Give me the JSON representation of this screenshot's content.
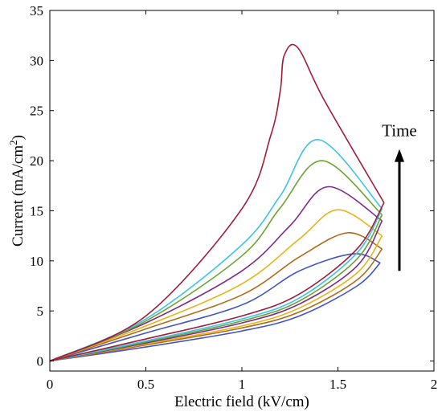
{
  "chart_data": {
    "type": "line",
    "xlabel": "Electric field (kV/cm)",
    "ylabel_main": "Current (mA/cm",
    "ylabel_sup": "2",
    "ylabel_close": ")",
    "xlim": [
      0,
      2
    ],
    "ylim": [
      -1,
      35
    ],
    "xticks": [
      0,
      0.5,
      1,
      1.5,
      2
    ],
    "xtick_labels": [
      "0",
      "0.5",
      "1",
      "1.5",
      "2"
    ],
    "yticks": [
      0,
      5,
      10,
      15,
      20,
      25,
      30,
      35
    ],
    "ytick_labels": [
      "0",
      "5",
      "10",
      "15",
      "20",
      "25",
      "30",
      "35"
    ],
    "grid": false,
    "annotation": {
      "text": "Time",
      "arrow_x": 1.82,
      "arrow_from": 9,
      "arrow_to": 21
    },
    "series": [
      {
        "color": "#4254c4",
        "upper": [
          [
            0,
            0
          ],
          [
            0.5,
            2.8
          ],
          [
            1,
            5.6
          ],
          [
            1.3,
            9.0
          ],
          [
            1.58,
            10.7
          ],
          [
            1.72,
            9.8
          ]
        ],
        "lower": [
          [
            1.72,
            9.8
          ],
          [
            1.6,
            7.5
          ],
          [
            1.3,
            4.5
          ],
          [
            1,
            3.0
          ],
          [
            0.5,
            1.4
          ],
          [
            0,
            0
          ]
        ]
      },
      {
        "color": "#b06a18",
        "upper": [
          [
            0,
            0
          ],
          [
            0.5,
            3.2
          ],
          [
            1,
            6.6
          ],
          [
            1.3,
            10.4
          ],
          [
            1.55,
            12.8
          ],
          [
            1.73,
            11.2
          ]
        ],
        "lower": [
          [
            1.73,
            11.2
          ],
          [
            1.6,
            8.1
          ],
          [
            1.3,
            4.9
          ],
          [
            1,
            3.3
          ],
          [
            0.5,
            1.6
          ],
          [
            0,
            0
          ]
        ]
      },
      {
        "color": "#e3b417",
        "upper": [
          [
            0,
            0
          ],
          [
            0.5,
            3.5
          ],
          [
            1,
            7.7
          ],
          [
            1.3,
            12.2
          ],
          [
            1.5,
            15.1
          ],
          [
            1.73,
            12.5
          ]
        ],
        "lower": [
          [
            1.73,
            12.5
          ],
          [
            1.6,
            8.8
          ],
          [
            1.3,
            5.3
          ],
          [
            1,
            3.5
          ],
          [
            0.5,
            1.7
          ],
          [
            0,
            0
          ]
        ]
      },
      {
        "color": "#7b2a8c",
        "upper": [
          [
            0,
            0
          ],
          [
            0.5,
            3.8
          ],
          [
            1,
            9.0
          ],
          [
            1.25,
            13.5
          ],
          [
            1.45,
            17.4
          ],
          [
            1.73,
            14.0
          ]
        ],
        "lower": [
          [
            1.73,
            14.0
          ],
          [
            1.6,
            9.5
          ],
          [
            1.3,
            5.7
          ],
          [
            1,
            3.8
          ],
          [
            0.5,
            1.8
          ],
          [
            0,
            0
          ]
        ]
      },
      {
        "color": "#6aa432",
        "upper": [
          [
            0,
            0
          ],
          [
            0.5,
            4.0
          ],
          [
            1,
            10.5
          ],
          [
            1.2,
            15.3
          ],
          [
            1.42,
            20.0
          ],
          [
            1.73,
            14.6
          ]
        ],
        "lower": [
          [
            1.73,
            14.6
          ],
          [
            1.6,
            10.2
          ],
          [
            1.3,
            6.0
          ],
          [
            1,
            4.0
          ],
          [
            0.5,
            1.9
          ],
          [
            0,
            0
          ]
        ]
      },
      {
        "color": "#3ec2e6",
        "upper": [
          [
            0,
            0
          ],
          [
            0.5,
            4.2
          ],
          [
            1,
            11.6
          ],
          [
            1.2,
            16.5
          ],
          [
            1.4,
            22.1
          ],
          [
            1.73,
            15.2
          ]
        ],
        "lower": [
          [
            1.73,
            15.2
          ],
          [
            1.6,
            10.8
          ],
          [
            1.3,
            6.3
          ],
          [
            1,
            4.2
          ],
          [
            0.5,
            2.0
          ],
          [
            0,
            0
          ]
        ]
      },
      {
        "color": "#a01b3a",
        "upper": [
          [
            0,
            0
          ],
          [
            0.5,
            4.5
          ],
          [
            1,
            15.2
          ],
          [
            1.15,
            22.5
          ],
          [
            1.2,
            27.0
          ],
          [
            1.22,
            30.5
          ],
          [
            1.29,
            31.3
          ],
          [
            1.43,
            26.0
          ],
          [
            1.74,
            15.8
          ]
        ],
        "lower": [
          [
            1.74,
            15.8
          ],
          [
            1.6,
            11.2
          ],
          [
            1.3,
            6.7
          ],
          [
            1,
            4.5
          ],
          [
            0.5,
            2.2
          ],
          [
            0,
            0
          ]
        ]
      }
    ]
  }
}
